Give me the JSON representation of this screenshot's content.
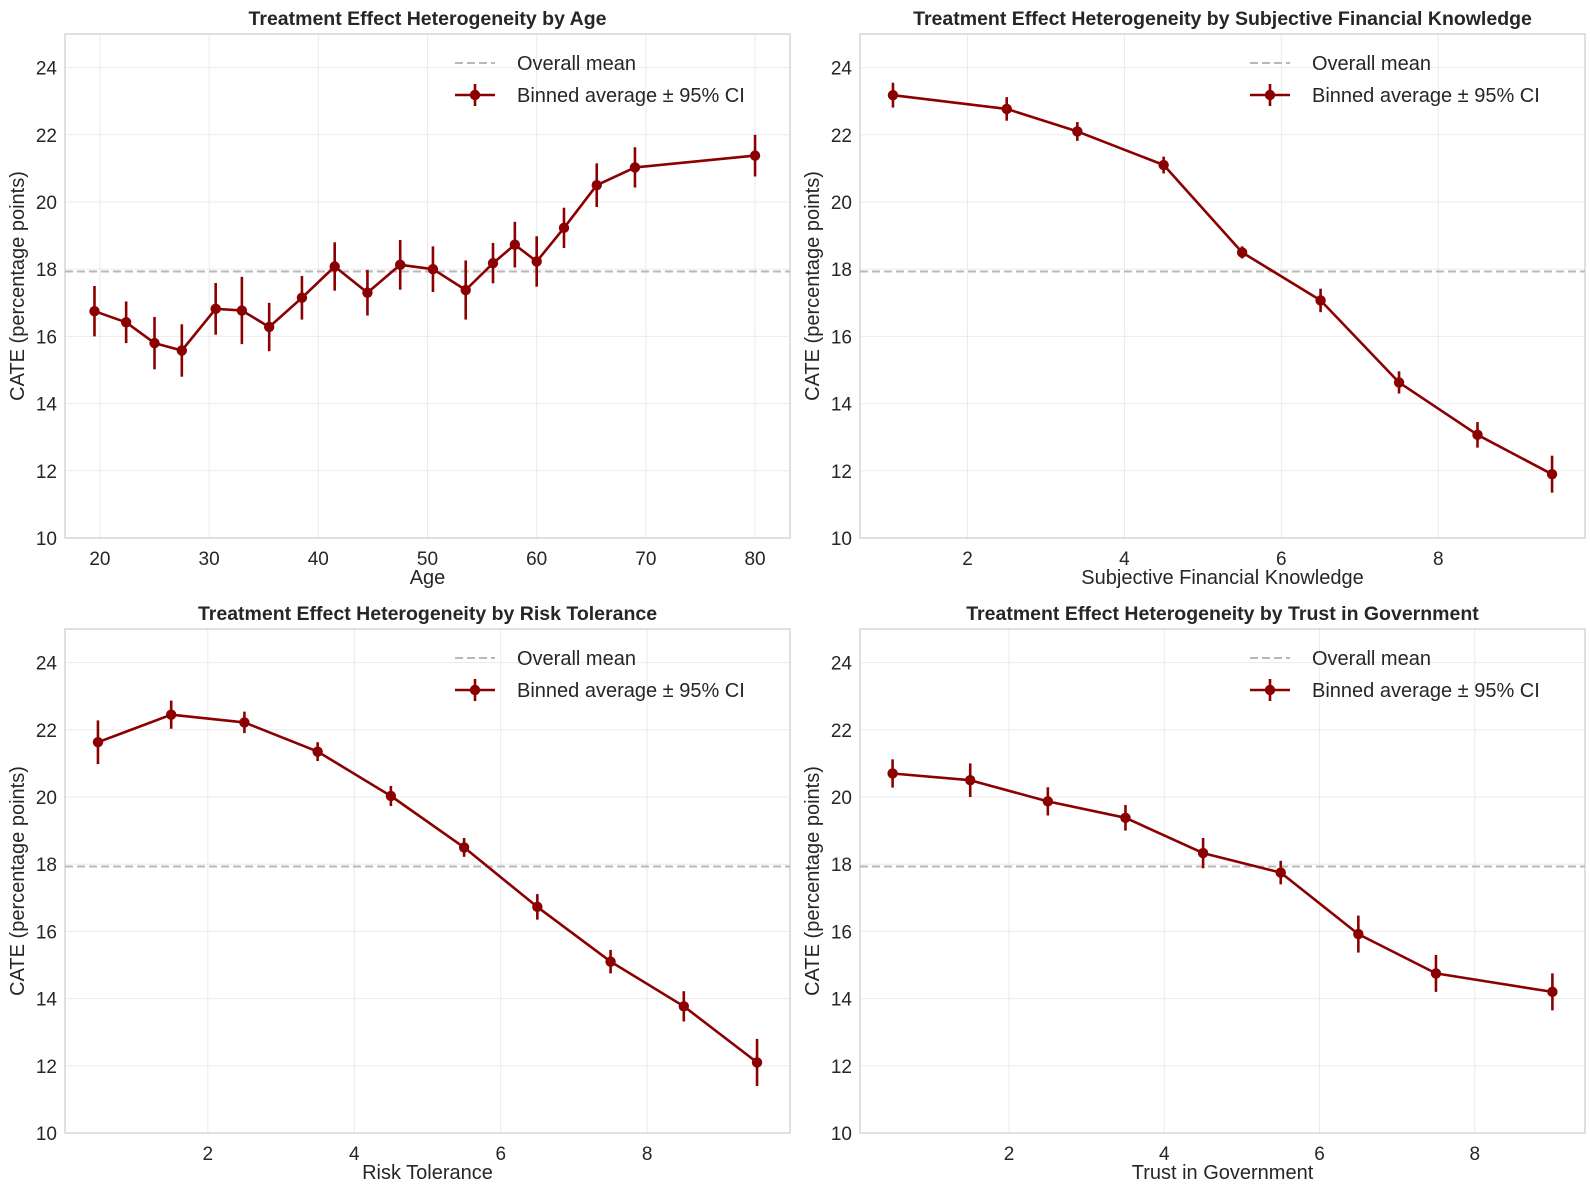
{
  "colors": {
    "line": "#8b0000",
    "mean_line": "#b8b8b8",
    "grid": "#ebebeb",
    "frame": "#cccccc",
    "text": "#262626"
  },
  "chart_data": [
    {
      "type": "line",
      "title": "Treatment Effect Heterogeneity by Age",
      "xlabel": "Age",
      "ylabel": "CATE (percentage points)",
      "xlim": [
        16.8,
        83.2
      ],
      "ylim": [
        10,
        25
      ],
      "xticks": [
        20,
        30,
        40,
        50,
        60,
        70,
        80
      ],
      "yticks": [
        10,
        12,
        14,
        16,
        18,
        20,
        22,
        24
      ],
      "grid": true,
      "legend_position": "top-right",
      "overall_mean": 17.93,
      "legend": [
        "Overall mean",
        "Binned average ± 95% CI"
      ],
      "x": [
        19.5,
        22.4,
        25.0,
        27.5,
        30.6,
        33.0,
        35.5,
        38.5,
        41.5,
        44.5,
        47.5,
        50.5,
        53.5,
        56.0,
        58.0,
        60.0,
        62.5,
        65.5,
        69.0,
        80.0
      ],
      "y": [
        16.75,
        16.42,
        15.8,
        15.58,
        16.82,
        16.77,
        16.28,
        17.15,
        18.08,
        17.3,
        18.13,
        18.0,
        17.38,
        18.18,
        18.73,
        18.23,
        19.23,
        20.5,
        21.03,
        21.38
      ],
      "ci": [
        0.75,
        0.62,
        0.78,
        0.78,
        0.77,
        1.0,
        0.72,
        0.65,
        0.72,
        0.68,
        0.74,
        0.68,
        0.88,
        0.6,
        0.68,
        0.75,
        0.6,
        0.65,
        0.6,
        0.62
      ]
    },
    {
      "type": "line",
      "title": "Treatment Effect Heterogeneity by Subjective Financial Knowledge",
      "xlabel": "Subjective Financial Knowledge",
      "ylabel": "CATE (percentage points)",
      "xlim": [
        0.63,
        9.87
      ],
      "ylim": [
        10,
        25
      ],
      "xticks": [
        2,
        4,
        6,
        8
      ],
      "yticks": [
        10,
        12,
        14,
        16,
        18,
        20,
        22,
        24
      ],
      "grid": true,
      "legend_position": "top-right",
      "overall_mean": 17.93,
      "legend": [
        "Overall mean",
        "Binned average ± 95% CI"
      ],
      "x": [
        1.05,
        2.5,
        3.4,
        4.5,
        5.5,
        6.5,
        7.5,
        8.5,
        9.45
      ],
      "y": [
        23.18,
        22.77,
        22.1,
        21.1,
        18.5,
        17.07,
        14.63,
        13.07,
        11.9
      ],
      "ci": [
        0.37,
        0.35,
        0.28,
        0.25,
        0.18,
        0.35,
        0.33,
        0.38,
        0.55
      ]
    },
    {
      "type": "line",
      "title": "Treatment Effect Heterogeneity by Risk Tolerance",
      "xlabel": "Risk Tolerance",
      "ylabel": "CATE (percentage points)",
      "xlim": [
        0.05,
        9.95
      ],
      "ylim": [
        10,
        25
      ],
      "xticks": [
        2,
        4,
        6,
        8
      ],
      "yticks": [
        10,
        12,
        14,
        16,
        18,
        20,
        22,
        24
      ],
      "grid": true,
      "legend_position": "top-right",
      "overall_mean": 17.93,
      "legend": [
        "Overall mean",
        "Binned average ± 95% CI"
      ],
      "x": [
        0.5,
        1.5,
        2.5,
        3.5,
        4.5,
        5.5,
        6.5,
        7.5,
        8.5,
        9.5
      ],
      "y": [
        21.63,
        22.45,
        22.22,
        21.35,
        20.03,
        18.5,
        16.73,
        15.1,
        13.77,
        12.1
      ],
      "ci": [
        0.65,
        0.42,
        0.32,
        0.28,
        0.3,
        0.28,
        0.38,
        0.35,
        0.45,
        0.7
      ]
    },
    {
      "type": "line",
      "title": "Treatment Effect Heterogeneity by Trust in Government",
      "xlabel": "Trust in Government",
      "ylabel": "CATE (percentage points)",
      "xlim": [
        0.08,
        9.42
      ],
      "ylim": [
        10,
        25
      ],
      "xticks": [
        2,
        4,
        6,
        8
      ],
      "yticks": [
        10,
        12,
        14,
        16,
        18,
        20,
        22,
        24
      ],
      "grid": true,
      "legend_position": "top-right",
      "overall_mean": 17.93,
      "legend": [
        "Overall mean",
        "Binned average ± 95% CI"
      ],
      "x": [
        0.5,
        1.5,
        2.5,
        3.5,
        4.5,
        5.5,
        6.5,
        7.5,
        9.0
      ],
      "y": [
        20.7,
        20.5,
        19.87,
        19.38,
        18.33,
        17.75,
        15.92,
        14.75,
        14.2
      ],
      "ci": [
        0.42,
        0.5,
        0.42,
        0.38,
        0.45,
        0.35,
        0.55,
        0.55,
        0.55
      ]
    }
  ]
}
